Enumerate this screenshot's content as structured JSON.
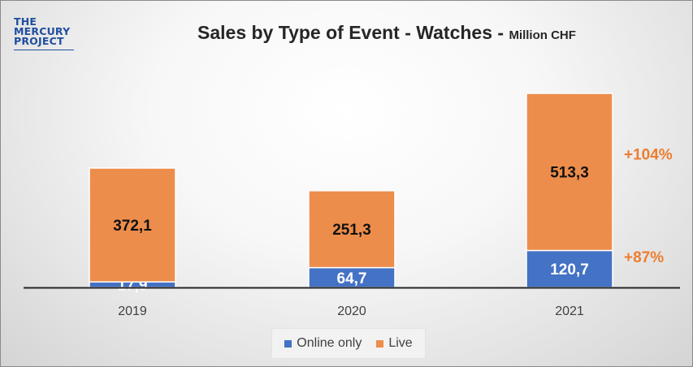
{
  "logo": {
    "line1": "THE",
    "line2": "MERCURY",
    "line3": "PROJECT"
  },
  "chart_data": {
    "type": "bar",
    "stacked": true,
    "title": "Sales by Type of Event - Watches -",
    "title_unit": "Million CHF",
    "categories": [
      "2019",
      "2020",
      "2021"
    ],
    "series": [
      {
        "name": "Online only",
        "values": [
          17.9,
          64.7,
          120.7
        ],
        "labels": [
          "17,9",
          "64,7",
          "120,7"
        ],
        "color": "#4472c4"
      },
      {
        "name": "Live",
        "values": [
          372.1,
          251.3,
          513.3
        ],
        "labels": [
          "372,1",
          "251,3",
          "513,3"
        ],
        "color": "#ed8d4b"
      }
    ],
    "annotations": [
      {
        "text": "+104%",
        "series": "Live",
        "category": "2021"
      },
      {
        "text": "+87%",
        "series": "Online only",
        "category": "2021"
      }
    ],
    "annotation_color": "#ed7d31",
    "ylim": [
      0,
      640
    ],
    "grid": false,
    "legend": "bottom"
  }
}
